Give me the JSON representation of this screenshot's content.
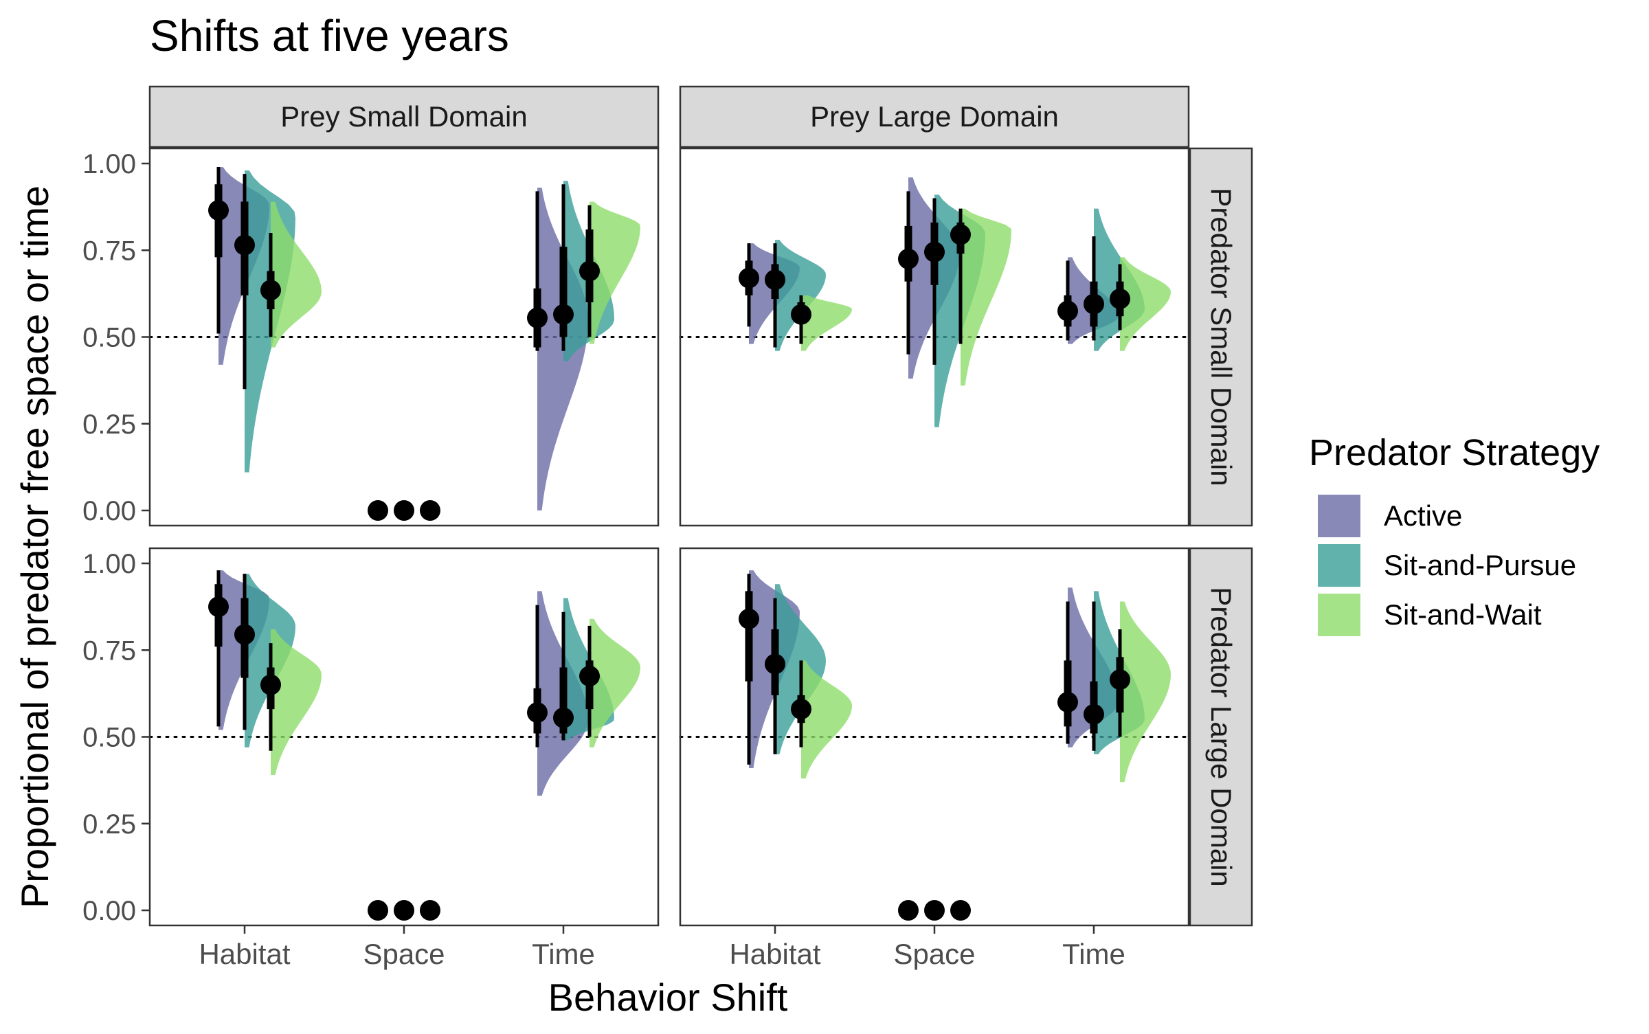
{
  "chart_data": {
    "type": "violin",
    "title": "Shifts at five years",
    "xlabel": "Behavior Shift",
    "ylabel": "Proportional of predator free space or time",
    "ylim": [
      0,
      1
    ],
    "yticks": [
      "0.00",
      "0.25",
      "0.50",
      "0.75",
      "1.00"
    ],
    "yticks_values": [
      0,
      0.25,
      0.5,
      0.75,
      1.0
    ],
    "reference_line": 0.5,
    "categories": [
      "Habitat",
      "Space",
      "Time"
    ],
    "col_facets": [
      "Prey Small Domain",
      "Prey Large Domain"
    ],
    "row_facets": [
      "Predator Small Domain",
      "Predator Large Domain"
    ],
    "legend": {
      "title": "Predator Strategy",
      "position": "right",
      "entries": [
        {
          "name": "Active",
          "color": "#6b6ba6"
        },
        {
          "name": "Sit-and-Pursue",
          "color": "#3a9e98"
        },
        {
          "name": "Sit-and-Wait",
          "color": "#8edc6a"
        }
      ]
    },
    "panels": [
      {
        "row": "Predator Small Domain",
        "col": "Prey Small Domain",
        "series": [
          {
            "name": "Active",
            "values": [
              {
                "category": "Habitat",
                "median": 0.865,
                "inner": [
                  0.73,
                  0.94
                ],
                "outer": [
                  0.51,
                  0.99
                ],
                "dens_range": [
                  0.42,
                  0.99
                ],
                "mode": 0.88
              },
              {
                "category": "Space",
                "median": 0.0
              },
              {
                "category": "Time",
                "median": 0.555,
                "inner": [
                  0.47,
                  0.64
                ],
                "outer": [
                  0.46,
                  0.92
                ],
                "dens_range": [
                  0.0,
                  0.93
                ],
                "mode": 0.55
              }
            ]
          },
          {
            "name": "Sit-and-Pursue",
            "values": [
              {
                "category": "Habitat",
                "median": 0.765,
                "inner": [
                  0.62,
                  0.89
                ],
                "outer": [
                  0.35,
                  0.97
                ],
                "dens_range": [
                  0.11,
                  0.98
                ],
                "mode": 0.85
              },
              {
                "category": "Space",
                "median": 0.0
              },
              {
                "category": "Time",
                "median": 0.565,
                "inner": [
                  0.5,
                  0.76
                ],
                "outer": [
                  0.46,
                  0.94
                ],
                "dens_range": [
                  0.43,
                  0.95
                ],
                "mode": 0.55
              }
            ]
          },
          {
            "name": "Sit-and-Wait",
            "values": [
              {
                "category": "Habitat",
                "median": 0.635,
                "inner": [
                  0.58,
                  0.69
                ],
                "outer": [
                  0.5,
                  0.8
                ],
                "dens_range": [
                  0.47,
                  0.89
                ],
                "mode": 0.63
              },
              {
                "category": "Space",
                "median": 0.0
              },
              {
                "category": "Time",
                "median": 0.69,
                "inner": [
                  0.6,
                  0.81
                ],
                "outer": [
                  0.5,
                  0.88
                ],
                "dens_range": [
                  0.48,
                  0.89
                ],
                "mode": 0.82
              }
            ]
          }
        ]
      },
      {
        "row": "Predator Small Domain",
        "col": "Prey Large Domain",
        "series": [
          {
            "name": "Active",
            "values": [
              {
                "category": "Habitat",
                "median": 0.67,
                "inner": [
                  0.62,
                  0.72
                ],
                "outer": [
                  0.53,
                  0.77
                ],
                "dens_range": [
                  0.48,
                  0.77
                ],
                "mode": 0.7
              },
              {
                "category": "Space",
                "median": 0.725,
                "inner": [
                  0.66,
                  0.82
                ],
                "outer": [
                  0.45,
                  0.92
                ],
                "dens_range": [
                  0.38,
                  0.96
                ],
                "mode": 0.74
              },
              {
                "category": "Time",
                "median": 0.575,
                "inner": [
                  0.53,
                  0.62
                ],
                "outer": [
                  0.49,
                  0.72
                ],
                "dens_range": [
                  0.48,
                  0.73
                ],
                "mode": 0.56
              }
            ]
          },
          {
            "name": "Sit-and-Pursue",
            "values": [
              {
                "category": "Habitat",
                "median": 0.665,
                "inner": [
                  0.61,
                  0.71
                ],
                "outer": [
                  0.47,
                  0.77
                ],
                "dens_range": [
                  0.46,
                  0.78
                ],
                "mode": 0.68
              },
              {
                "category": "Space",
                "median": 0.745,
                "inner": [
                  0.65,
                  0.83
                ],
                "outer": [
                  0.42,
                  0.9
                ],
                "dens_range": [
                  0.24,
                  0.91
                ],
                "mode": 0.8
              },
              {
                "category": "Time",
                "median": 0.595,
                "inner": [
                  0.53,
                  0.66
                ],
                "outer": [
                  0.49,
                  0.79
                ],
                "dens_range": [
                  0.46,
                  0.87
                ],
                "mode": 0.58
              }
            ]
          },
          {
            "name": "Sit-and-Wait",
            "values": [
              {
                "category": "Habitat",
                "median": 0.565,
                "inner": [
                  0.54,
                  0.6
                ],
                "outer": [
                  0.48,
                  0.62
                ],
                "dens_range": [
                  0.46,
                  0.62
                ],
                "mode": 0.58
              },
              {
                "category": "Space",
                "median": 0.795,
                "inner": [
                  0.74,
                  0.83
                ],
                "outer": [
                  0.48,
                  0.87
                ],
                "dens_range": [
                  0.36,
                  0.87
                ],
                "mode": 0.81
              },
              {
                "category": "Time",
                "median": 0.61,
                "inner": [
                  0.56,
                  0.66
                ],
                "outer": [
                  0.52,
                  0.71
                ],
                "dens_range": [
                  0.46,
                  0.73
                ],
                "mode": 0.63
              }
            ]
          }
        ]
      },
      {
        "row": "Predator Large Domain",
        "col": "Prey Small Domain",
        "series": [
          {
            "name": "Active",
            "values": [
              {
                "category": "Habitat",
                "median": 0.875,
                "inner": [
                  0.76,
                  0.94
                ],
                "outer": [
                  0.53,
                  0.98
                ],
                "dens_range": [
                  0.52,
                  0.98
                ],
                "mode": 0.9
              },
              {
                "category": "Space",
                "median": 0.0
              },
              {
                "category": "Time",
                "median": 0.57,
                "inner": [
                  0.51,
                  0.64
                ],
                "outer": [
                  0.47,
                  0.88
                ],
                "dens_range": [
                  0.33,
                  0.92
                ],
                "mode": 0.55
              }
            ]
          },
          {
            "name": "Sit-and-Pursue",
            "values": [
              {
                "category": "Habitat",
                "median": 0.795,
                "inner": [
                  0.67,
                  0.9
                ],
                "outer": [
                  0.52,
                  0.97
                ],
                "dens_range": [
                  0.47,
                  0.97
                ],
                "mode": 0.82
              },
              {
                "category": "Space",
                "median": 0.0
              },
              {
                "category": "Time",
                "median": 0.555,
                "inner": [
                  0.51,
                  0.7
                ],
                "outer": [
                  0.49,
                  0.86
                ],
                "dens_range": [
                  0.49,
                  0.9
                ],
                "mode": 0.55
              }
            ]
          },
          {
            "name": "Sit-and-Wait",
            "values": [
              {
                "category": "Habitat",
                "median": 0.65,
                "inner": [
                  0.58,
                  0.7
                ],
                "outer": [
                  0.46,
                  0.77
                ],
                "dens_range": [
                  0.39,
                  0.81
                ],
                "mode": 0.68
              },
              {
                "category": "Space",
                "median": 0.0
              },
              {
                "category": "Time",
                "median": 0.675,
                "inner": [
                  0.58,
                  0.72
                ],
                "outer": [
                  0.5,
                  0.82
                ],
                "dens_range": [
                  0.47,
                  0.84
                ],
                "mode": 0.7
              }
            ]
          }
        ]
      },
      {
        "row": "Predator Large Domain",
        "col": "Prey Large Domain",
        "series": [
          {
            "name": "Active",
            "values": [
              {
                "category": "Habitat",
                "median": 0.84,
                "inner": [
                  0.66,
                  0.92
                ],
                "outer": [
                  0.42,
                  0.97
                ],
                "dens_range": [
                  0.41,
                  0.98
                ],
                "mode": 0.86
              },
              {
                "category": "Space",
                "median": 0.0
              },
              {
                "category": "Time",
                "median": 0.6,
                "inner": [
                  0.53,
                  0.72
                ],
                "outer": [
                  0.48,
                  0.89
                ],
                "dens_range": [
                  0.47,
                  0.93
                ],
                "mode": 0.6
              }
            ]
          },
          {
            "name": "Sit-and-Pursue",
            "values": [
              {
                "category": "Habitat",
                "median": 0.71,
                "inner": [
                  0.62,
                  0.81
                ],
                "outer": [
                  0.45,
                  0.9
                ],
                "dens_range": [
                  0.45,
                  0.94
                ],
                "mode": 0.72
              },
              {
                "category": "Space",
                "median": 0.0
              },
              {
                "category": "Time",
                "median": 0.565,
                "inner": [
                  0.51,
                  0.66
                ],
                "outer": [
                  0.46,
                  0.89
                ],
                "dens_range": [
                  0.45,
                  0.92
                ],
                "mode": 0.55
              }
            ]
          },
          {
            "name": "Sit-and-Wait",
            "values": [
              {
                "category": "Habitat",
                "median": 0.58,
                "inner": [
                  0.54,
                  0.62
                ],
                "outer": [
                  0.47,
                  0.72
                ],
                "dens_range": [
                  0.38,
                  0.72
                ],
                "mode": 0.59
              },
              {
                "category": "Space",
                "median": 0.0
              },
              {
                "category": "Time",
                "median": 0.665,
                "inner": [
                  0.57,
                  0.73
                ],
                "outer": [
                  0.5,
                  0.81
                ],
                "dens_range": [
                  0.37,
                  0.89
                ],
                "mode": 0.68
              }
            ]
          }
        ]
      }
    ]
  }
}
